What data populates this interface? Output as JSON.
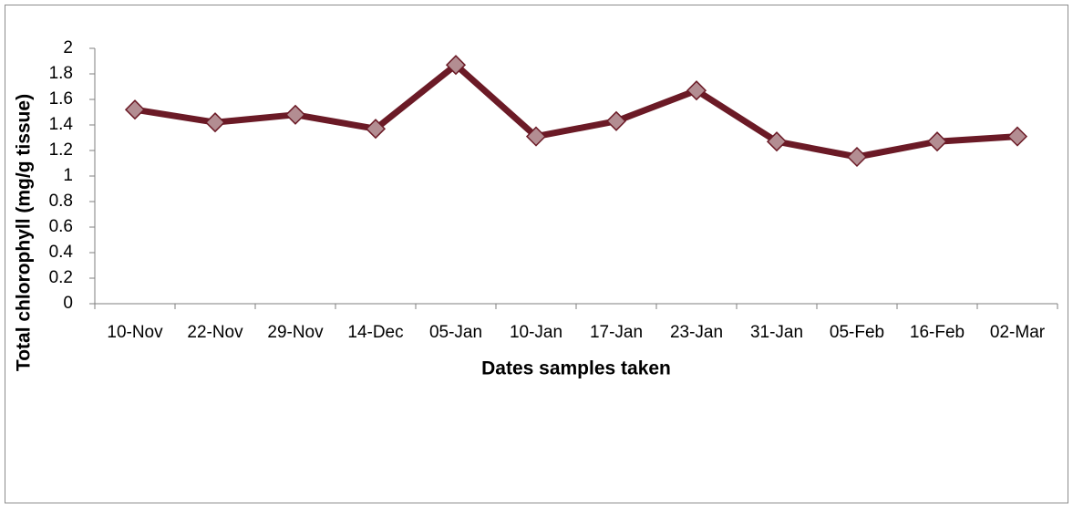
{
  "chart_data": {
    "type": "line",
    "x_label": "Dates samples taken",
    "y_label": "Total chlorophyll (mg/g tissue)",
    "categories": [
      "10-Nov",
      "22-Nov",
      "29-Nov",
      "14-Dec",
      "05-Jan",
      "10-Jan",
      "17-Jan",
      "23-Jan",
      "31-Jan",
      "05-Feb",
      "16-Feb",
      "02-Mar"
    ],
    "values": [
      1.52,
      1.42,
      1.48,
      1.37,
      1.87,
      1.31,
      1.43,
      1.67,
      1.27,
      1.15,
      1.27,
      1.31
    ],
    "color": "#6b1a26",
    "marker_color": "#b38d92",
    "ylim": [
      0,
      2
    ],
    "yticks": [
      0,
      0.2,
      0.4,
      0.6,
      0.8,
      1,
      1.2,
      1.4,
      1.6,
      1.8,
      2
    ],
    "grid": false
  }
}
